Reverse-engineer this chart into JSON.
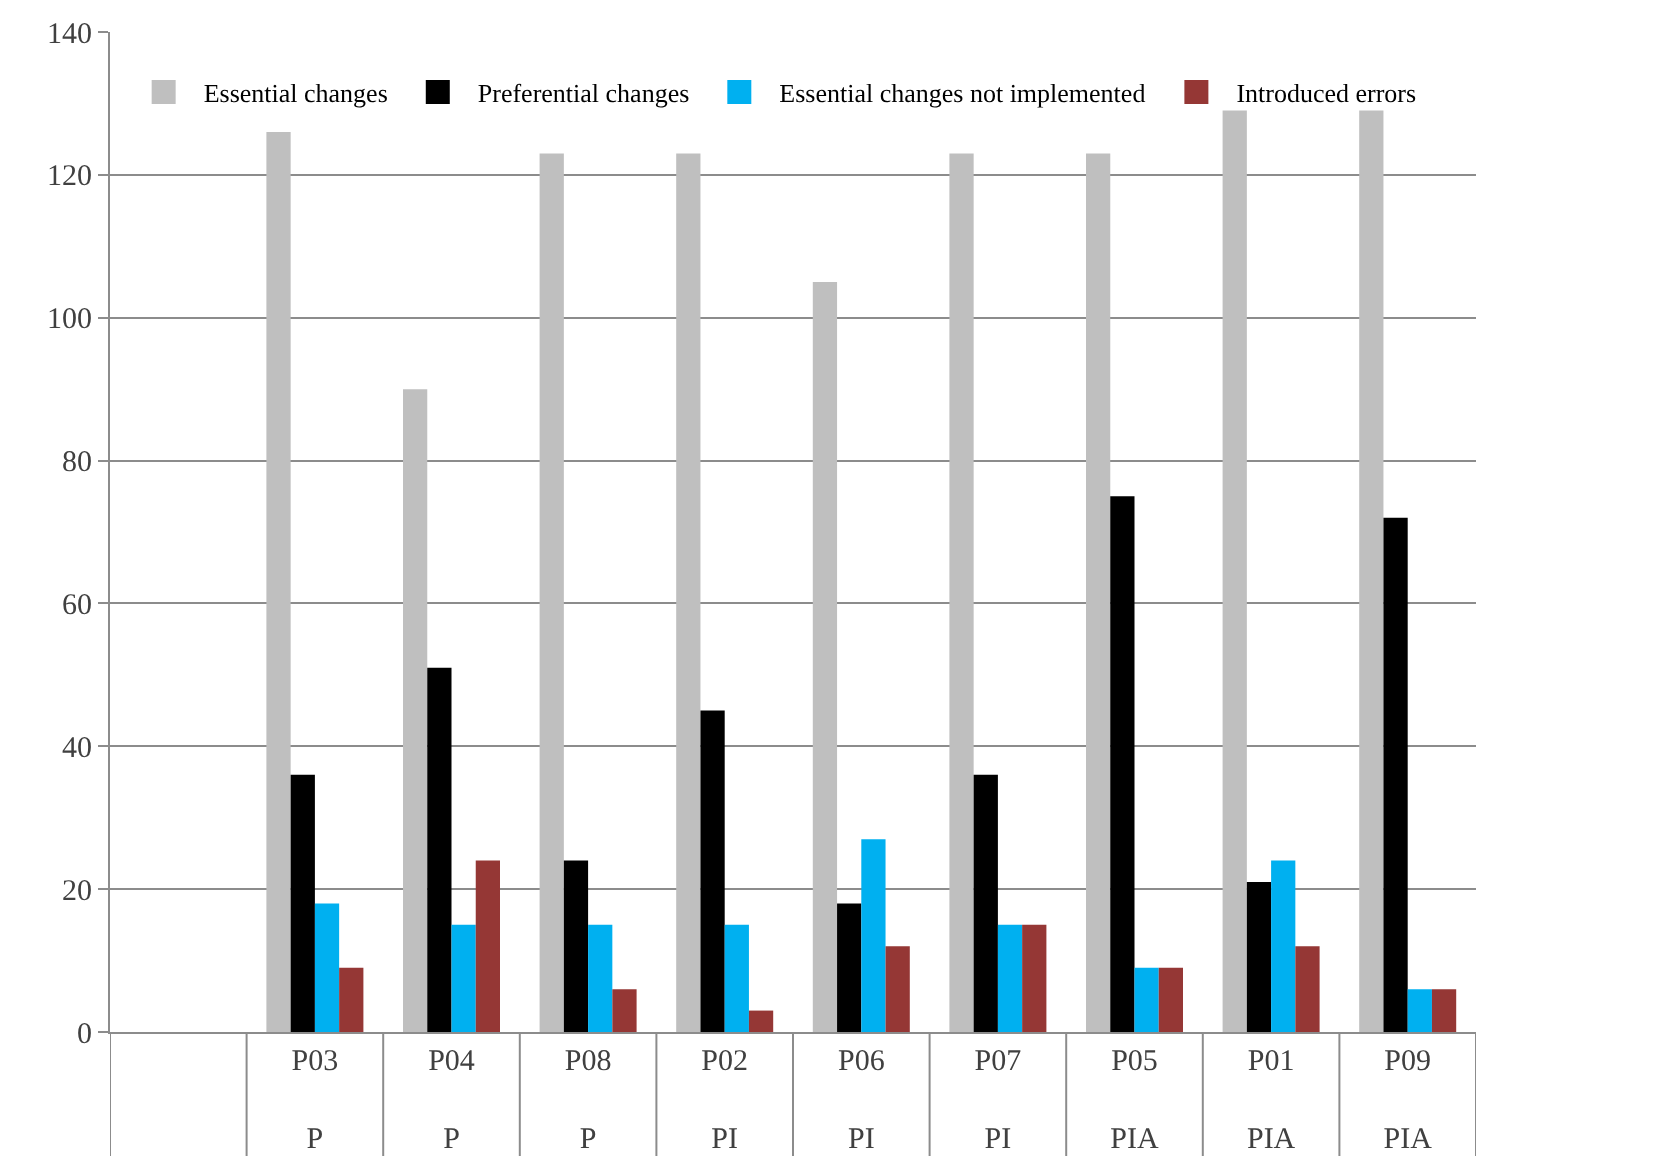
{
  "chart_data": {
    "type": "bar",
    "categories": [
      null,
      "P03\nP",
      "P04\nP",
      "P08\nP",
      "P02\nPI",
      "P06\nPI",
      "P07\nPI",
      "P05\nPIA",
      "P01\nPIA",
      "P09\nPIA"
    ],
    "series": [
      {
        "name": "Essential changes",
        "color": "#bfbfbf",
        "values": [
          null,
          126,
          90,
          123,
          123,
          105,
          123,
          123,
          129,
          129
        ]
      },
      {
        "name": "Preferential changes",
        "color": "#000000",
        "values": [
          null,
          36,
          51,
          24,
          45,
          18,
          36,
          75,
          21,
          72
        ]
      },
      {
        "name": "Essential changes not implemented",
        "color": "#00b0f0",
        "values": [
          null,
          18,
          15,
          15,
          15,
          27,
          15,
          9,
          24,
          6
        ]
      },
      {
        "name": "Introduced errors",
        "color": "#953735",
        "values": [
          null,
          9,
          24,
          6,
          3,
          12,
          15,
          9,
          12,
          6
        ]
      }
    ],
    "ylim": [
      0,
      140
    ],
    "yticks": [
      0,
      20,
      40,
      60,
      80,
      100,
      120,
      140
    ],
    "grid": "y",
    "legend": "top"
  }
}
